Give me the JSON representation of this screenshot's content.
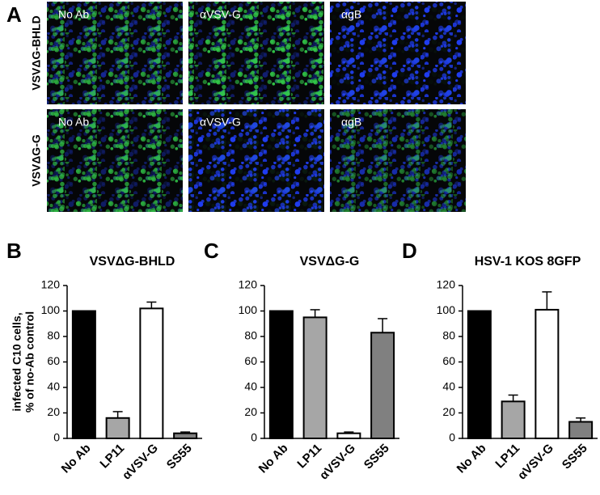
{
  "panel_a": {
    "label": "A",
    "rows": [
      {
        "label": "VSVΔG-BHLD",
        "images": [
          "No Ab",
          "αVSV-G",
          "αgB"
        ]
      },
      {
        "label": "VSVΔG-G",
        "images": [
          "No Ab",
          "αVSV-G",
          "αgB"
        ]
      }
    ]
  },
  "chart_data": [
    {
      "type": "bar",
      "panel_label": "B",
      "title": "VSVΔG-BHLD",
      "y_label": [
        "infected C10 cells,",
        "% of no-Ab control"
      ],
      "categories": [
        "No Ab",
        "LP11",
        "αVSV-G",
        "SS55"
      ],
      "values": [
        100,
        16,
        102,
        4
      ],
      "errors": [
        0,
        5,
        5,
        1
      ],
      "colors": [
        "#000000",
        "#a6a6a6",
        "#ffffff",
        "#808080"
      ],
      "ylim": [
        0,
        120
      ],
      "yticks": [
        0,
        20,
        40,
        60,
        80,
        100,
        120
      ]
    },
    {
      "type": "bar",
      "panel_label": "C",
      "title": "VSVΔG-G",
      "categories": [
        "No Ab",
        "LP11",
        "αVSV-G",
        "SS55"
      ],
      "values": [
        100,
        95,
        4,
        83
      ],
      "errors": [
        0,
        6,
        1,
        11
      ],
      "colors": [
        "#000000",
        "#a6a6a6",
        "#ffffff",
        "#808080"
      ],
      "ylim": [
        0,
        120
      ],
      "yticks": [
        0,
        20,
        40,
        60,
        80,
        100,
        120
      ]
    },
    {
      "type": "bar",
      "panel_label": "D",
      "title": "HSV-1 KOS 8GFP",
      "categories": [
        "No Ab",
        "LP11",
        "αVSV-G",
        "SS55"
      ],
      "values": [
        100,
        29,
        101,
        13
      ],
      "errors": [
        0,
        5,
        14,
        3
      ],
      "colors": [
        "#000000",
        "#a6a6a6",
        "#ffffff",
        "#808080"
      ],
      "ylim": [
        0,
        120
      ],
      "yticks": [
        0,
        20,
        40,
        60,
        80,
        100,
        120
      ]
    }
  ]
}
